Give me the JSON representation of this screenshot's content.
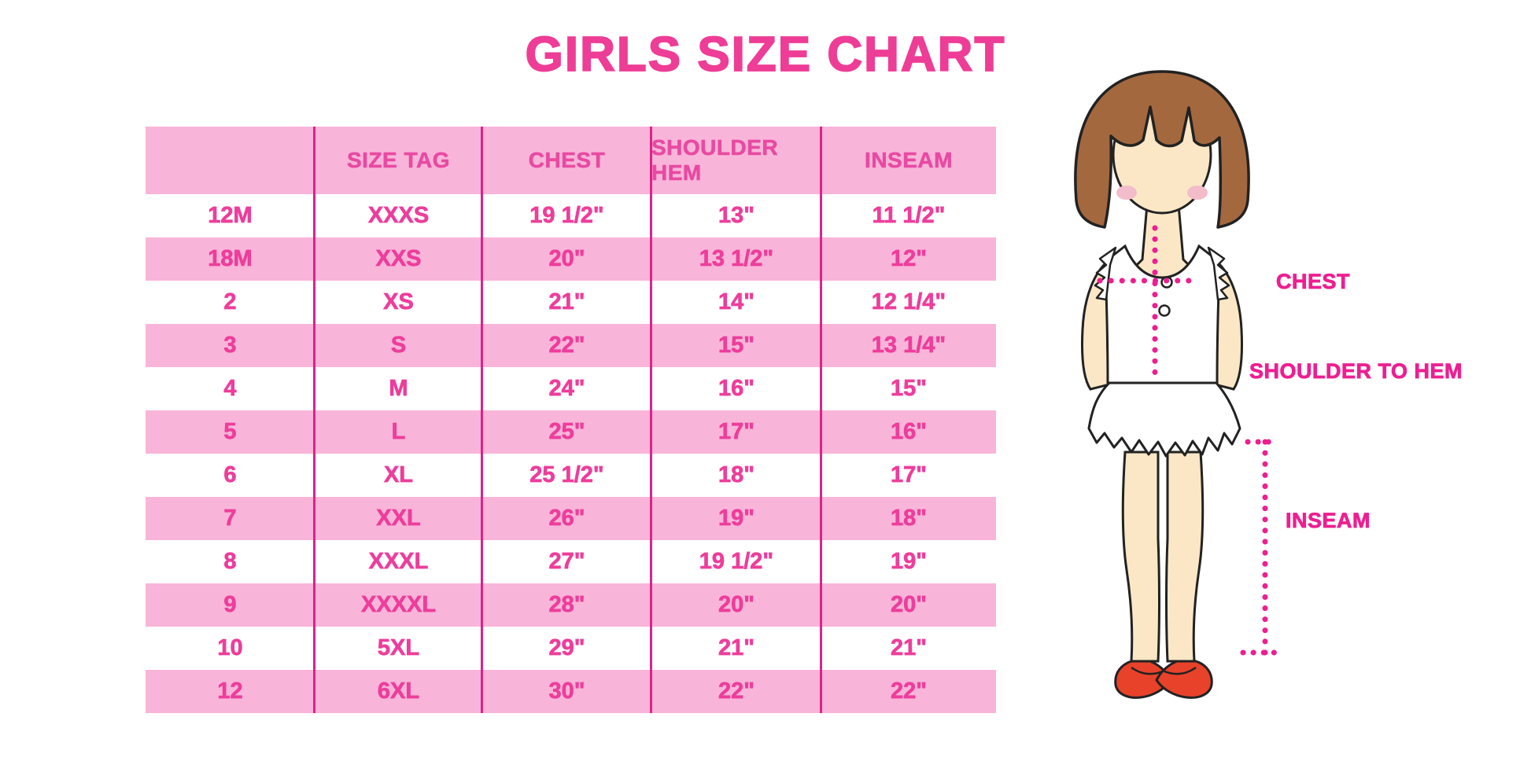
{
  "title": "GIRLS SIZE CHART",
  "table": {
    "columns": [
      "",
      "SIZE TAG",
      "CHEST",
      "SHOULDER HEM",
      "INSEAM"
    ],
    "rows": [
      [
        "12M",
        "XXXS",
        "19 1/2\"",
        "13\"",
        "11 1/2\""
      ],
      [
        "18M",
        "XXS",
        "20\"",
        "13 1/2\"",
        "12\""
      ],
      [
        "2",
        "XS",
        "21\"",
        "14\"",
        "12 1/4\""
      ],
      [
        "3",
        "S",
        "22\"",
        "15\"",
        "13 1/4\""
      ],
      [
        "4",
        "M",
        "24\"",
        "16\"",
        "15\""
      ],
      [
        "5",
        "L",
        "25\"",
        "17\"",
        "16\""
      ],
      [
        "6",
        "XL",
        "25 1/2\"",
        "18\"",
        "17\""
      ],
      [
        "7",
        "XXL",
        "26\"",
        "19\"",
        "18\""
      ],
      [
        "8",
        "XXXL",
        "27\"",
        "19 1/2\"",
        "19\""
      ],
      [
        "9",
        "XXXXL",
        "28\"",
        "20\"",
        "20\""
      ],
      [
        "10",
        "5XL",
        "29\"",
        "21\"",
        "21\""
      ],
      [
        "12",
        "6XL",
        "30\"",
        "22\"",
        "22\""
      ]
    ]
  },
  "diagram": {
    "labels": {
      "chest": "CHEST",
      "shoulder_to_hem": "SHOULDER TO HEM",
      "inseam": "INSEAM"
    }
  },
  "colors": {
    "title_pink": "#ee3d96",
    "row_pink": "#f9b5d9",
    "divider_magenta": "#e0218a",
    "cell_text_pink": "#ee3d9b",
    "measure_magenta": "#ee1e90",
    "hair_brown": "#a4683f",
    "skin": "#fbe7c6",
    "blush": "#f3bcca",
    "shoe_red": "#e8422b"
  },
  "chart_data": {
    "type": "table",
    "title": "GIRLS SIZE CHART",
    "columns": [
      "",
      "SIZE TAG",
      "CHEST",
      "SHOULDER HEM",
      "INSEAM"
    ],
    "rows": [
      [
        "12M",
        "XXXS",
        "19 1/2\"",
        "13\"",
        "11 1/2\""
      ],
      [
        "18M",
        "XXS",
        "20\"",
        "13 1/2\"",
        "12\""
      ],
      [
        "2",
        "XS",
        "21\"",
        "14\"",
        "12 1/4\""
      ],
      [
        "3",
        "S",
        "22\"",
        "15\"",
        "13 1/4\""
      ],
      [
        "4",
        "M",
        "24\"",
        "16\"",
        "15\""
      ],
      [
        "5",
        "L",
        "25\"",
        "17\"",
        "16\""
      ],
      [
        "6",
        "XL",
        "25 1/2\"",
        "18\"",
        "17\""
      ],
      [
        "7",
        "XXL",
        "26\"",
        "19\"",
        "18\""
      ],
      [
        "8",
        "XXXL",
        "27\"",
        "19 1/2\"",
        "19\""
      ],
      [
        "9",
        "XXXXL",
        "28\"",
        "20\"",
        "20\""
      ],
      [
        "10",
        "5XL",
        "29\"",
        "21\"",
        "21\""
      ],
      [
        "12",
        "6XL",
        "30\"",
        "22\"",
        "22\""
      ]
    ],
    "annotations": [
      "CHEST",
      "SHOULDER TO HEM",
      "INSEAM"
    ],
    "units": "inches"
  }
}
